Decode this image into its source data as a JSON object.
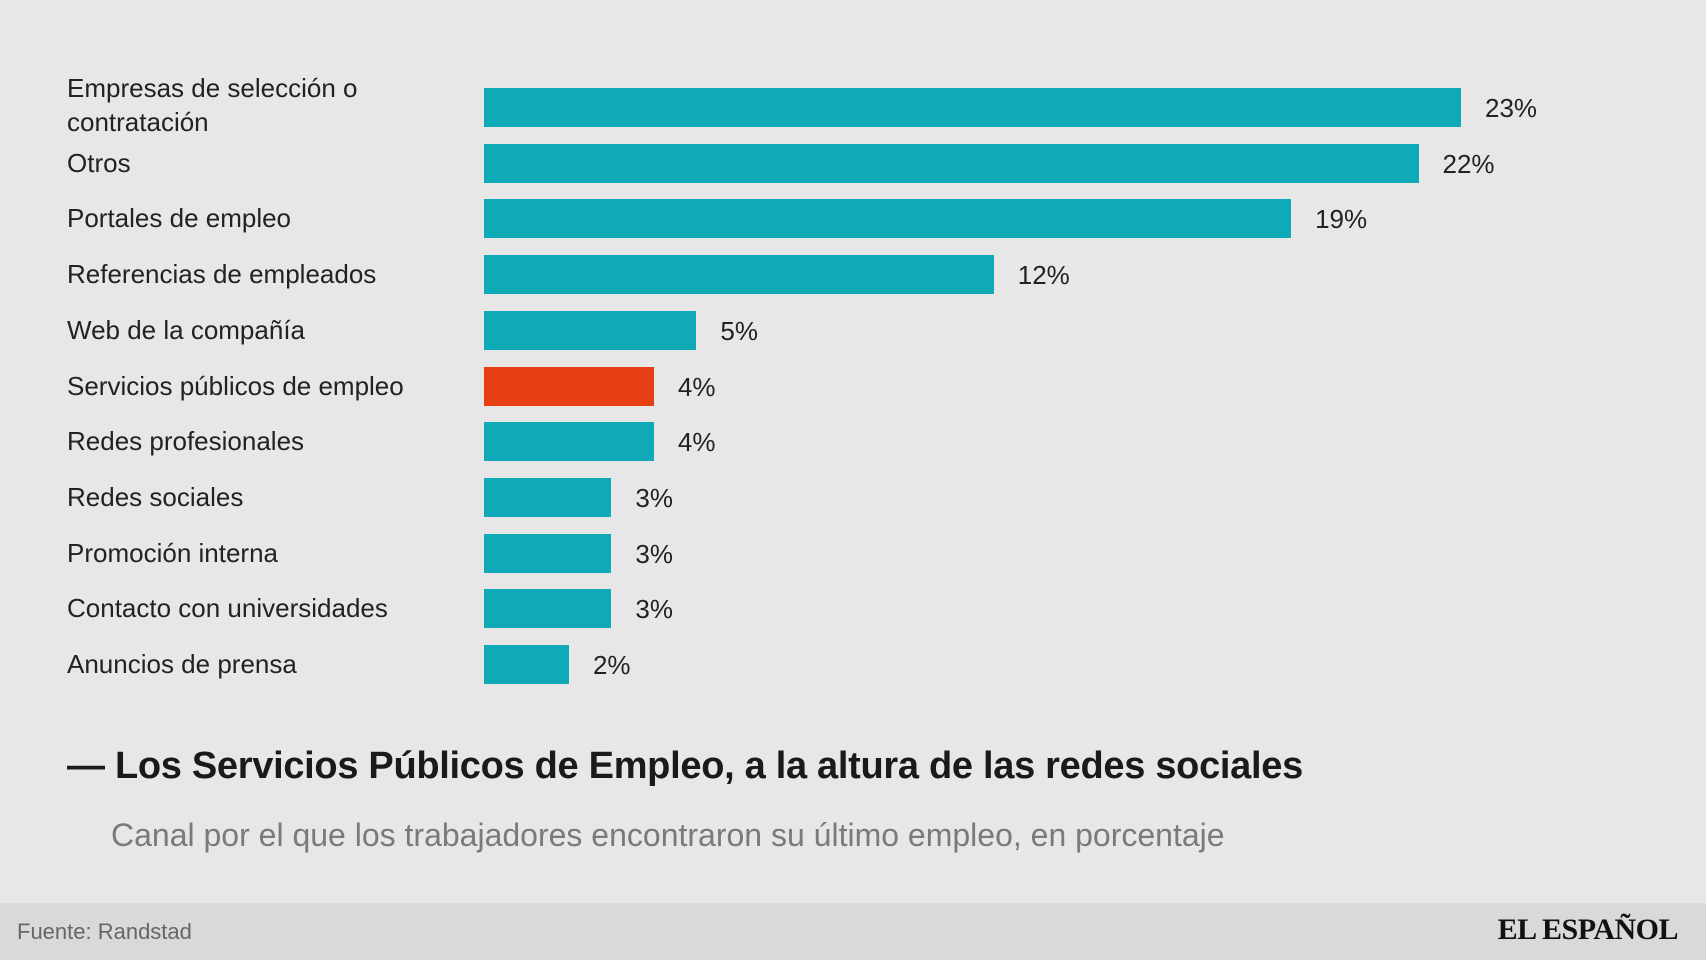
{
  "chart_data": {
    "type": "bar",
    "orientation": "horizontal",
    "title": "— Los Servicios Públicos de Empleo, a la altura de las redes sociales",
    "subtitle": "Canal por el que los trabajadores encontraron su último empleo, en porcentaje",
    "unit": "%",
    "categories": [
      "Empresas de selección o contratación",
      "Otros",
      "Portales de empleo",
      "Referencias de empleados",
      "Web de la compañía",
      "Servicios públicos de empleo",
      "Redes profesionales",
      "Redes sociales",
      "Promoción interna",
      "Contacto con universidades",
      "Anuncios de prensa"
    ],
    "values": [
      23,
      22,
      19,
      12,
      5,
      4,
      4,
      3,
      3,
      3,
      2
    ],
    "value_labels": [
      "23%",
      "22%",
      "19%",
      "12%",
      "5%",
      "4%",
      "4%",
      "3%",
      "3%",
      "3%",
      "2%"
    ],
    "highlight_index": 5,
    "colors": {
      "bar": "#10a9b8",
      "highlight": "#e83e13"
    },
    "xlim": [
      0,
      23
    ]
  },
  "footer": {
    "source": "Fuente: Randstad",
    "brand": "EL ESPAÑOL"
  }
}
